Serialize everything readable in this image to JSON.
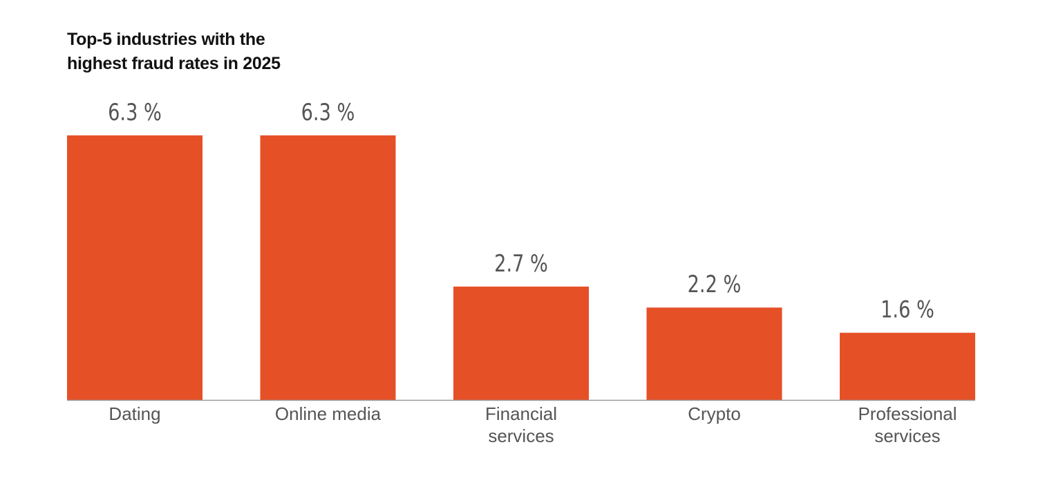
{
  "chart_data": {
    "type": "bar",
    "title_lines": [
      "Top-5 industries with the",
      "highest fraud rates in 2025"
    ],
    "categories": [
      [
        "Dating"
      ],
      [
        "Online media"
      ],
      [
        "Financial",
        "services"
      ],
      [
        "Crypto"
      ],
      [
        "Professional",
        "services"
      ]
    ],
    "values": [
      6.3,
      6.3,
      2.7,
      2.2,
      1.6
    ],
    "value_labels": [
      "6.3 %",
      "6.3 %",
      "2.7 %",
      "2.2 %",
      "1.6 %"
    ],
    "unit": "%",
    "xlabel": "",
    "ylabel": "",
    "ylim": [
      0,
      6.3
    ],
    "grid": false,
    "bar_color": "#E65027",
    "text_color": "#555555",
    "baseline_color": "#999999"
  }
}
